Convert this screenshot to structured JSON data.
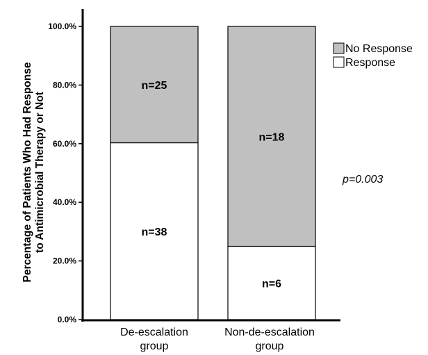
{
  "chart_data": {
    "type": "bar",
    "stacked": true,
    "ylabel_lines": [
      "Percentage of Patients Who Had Response",
      "to Antimicrobial Therapy or Not"
    ],
    "ylim": [
      0,
      100
    ],
    "yticks": [
      "0.0%",
      "20.0%",
      "40.0%",
      "60.0%",
      "80.0%",
      "100.0%"
    ],
    "ytick_values": [
      0,
      20,
      40,
      60,
      80,
      100
    ],
    "categories": [
      [
        "De-escalation",
        "group"
      ],
      [
        "Non-de-escalation",
        "group"
      ]
    ],
    "series": [
      {
        "name": "Response",
        "color": "#ffffff",
        "values": [
          60.3,
          25.0
        ],
        "labels": [
          "n=38",
          "n=6"
        ]
      },
      {
        "name": "No Response",
        "color": "#c0c0c0",
        "values": [
          39.7,
          75.0
        ],
        "labels": [
          "n=25",
          "n=18"
        ]
      }
    ],
    "legend": {
      "placement": "top-right",
      "entries": [
        {
          "label": "No Response",
          "color": "#c0c0c0"
        },
        {
          "label": "Response",
          "color": "#ffffff"
        }
      ]
    },
    "annotation": "p=0.003",
    "grid": false
  }
}
